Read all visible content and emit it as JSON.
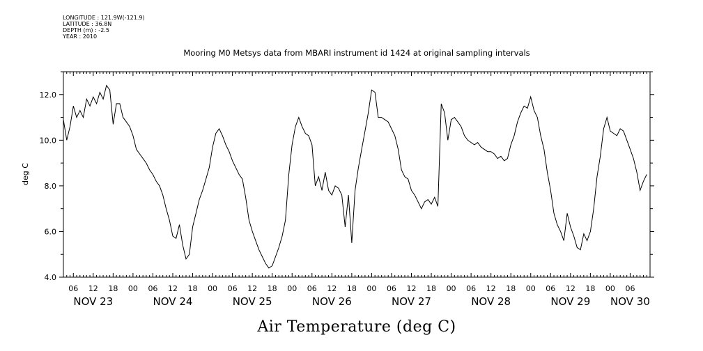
{
  "header": {
    "longitude": "LONGITUDE : 121.9W(-121.9)",
    "latitude": "LATITUDE : 36.8N",
    "depth": "DEPTH (m) : -2.5",
    "year": "YEAR : 2010"
  },
  "chart_data": {
    "type": "line",
    "title": "Mooring M0 Metsys data from MBARI instrument id 1424 at original sampling intervals",
    "xlabel": "Air Temperature (deg C)",
    "ylabel": "deg C",
    "xlim": [
      "2010-11-23T03:00",
      "2010-11-30T12:00"
    ],
    "ylim": [
      4.0,
      13.0
    ],
    "yticks": [
      "4.0",
      "6.0",
      "8.0",
      "10.0",
      "12.0"
    ],
    "hour_ticks": [
      {
        "x": "2010-11-23T06:00",
        "label": "06"
      },
      {
        "x": "2010-11-23T12:00",
        "label": "12"
      },
      {
        "x": "2010-11-23T18:00",
        "label": "18"
      },
      {
        "x": "2010-11-24T00:00",
        "label": "00"
      },
      {
        "x": "2010-11-24T06:00",
        "label": "06"
      },
      {
        "x": "2010-11-24T12:00",
        "label": "12"
      },
      {
        "x": "2010-11-24T18:00",
        "label": "18"
      },
      {
        "x": "2010-11-25T00:00",
        "label": "00"
      },
      {
        "x": "2010-11-25T06:00",
        "label": "06"
      },
      {
        "x": "2010-11-25T12:00",
        "label": "12"
      },
      {
        "x": "2010-11-25T18:00",
        "label": "18"
      },
      {
        "x": "2010-11-26T00:00",
        "label": "00"
      },
      {
        "x": "2010-11-26T06:00",
        "label": "06"
      },
      {
        "x": "2010-11-26T12:00",
        "label": "12"
      },
      {
        "x": "2010-11-26T18:00",
        "label": "18"
      },
      {
        "x": "2010-11-27T00:00",
        "label": "00"
      },
      {
        "x": "2010-11-27T06:00",
        "label": "06"
      },
      {
        "x": "2010-11-27T12:00",
        "label": "12"
      },
      {
        "x": "2010-11-27T18:00",
        "label": "18"
      },
      {
        "x": "2010-11-28T00:00",
        "label": "00"
      },
      {
        "x": "2010-11-28T06:00",
        "label": "06"
      },
      {
        "x": "2010-11-28T12:00",
        "label": "12"
      },
      {
        "x": "2010-11-28T18:00",
        "label": "18"
      },
      {
        "x": "2010-11-29T00:00",
        "label": "00"
      },
      {
        "x": "2010-11-29T06:00",
        "label": "06"
      },
      {
        "x": "2010-11-29T12:00",
        "label": "12"
      },
      {
        "x": "2010-11-29T18:00",
        "label": "18"
      },
      {
        "x": "2010-11-30T00:00",
        "label": "00"
      },
      {
        "x": "2010-11-30T06:00",
        "label": "06"
      }
    ],
    "day_labels": [
      {
        "x": "2010-11-23T12:00",
        "label": "NOV 23"
      },
      {
        "x": "2010-11-24T12:00",
        "label": "NOV 24"
      },
      {
        "x": "2010-11-25T12:00",
        "label": "NOV 25"
      },
      {
        "x": "2010-11-26T12:00",
        "label": "NOV 26"
      },
      {
        "x": "2010-11-27T12:00",
        "label": "NOV 27"
      },
      {
        "x": "2010-11-28T12:00",
        "label": "NOV 28"
      },
      {
        "x": "2010-11-29T12:00",
        "label": "NOV 29"
      },
      {
        "x": "2010-11-30T06:00",
        "label": "NOV 30"
      }
    ],
    "grid": false,
    "series": [
      {
        "color": "#000000",
        "points": [
          [
            "2010-11-23T03:00",
            10.9
          ],
          [
            "2010-11-23T04:00",
            10.0
          ],
          [
            "2010-11-23T05:00",
            10.6
          ],
          [
            "2010-11-23T06:00",
            11.5
          ],
          [
            "2010-11-23T07:00",
            11.0
          ],
          [
            "2010-11-23T08:00",
            11.3
          ],
          [
            "2010-11-23T09:00",
            11.0
          ],
          [
            "2010-11-23T10:00",
            11.8
          ],
          [
            "2010-11-23T11:00",
            11.5
          ],
          [
            "2010-11-23T12:00",
            11.9
          ],
          [
            "2010-11-23T13:00",
            11.6
          ],
          [
            "2010-11-23T14:00",
            12.1
          ],
          [
            "2010-11-23T15:00",
            11.8
          ],
          [
            "2010-11-23T16:00",
            12.4
          ],
          [
            "2010-11-23T17:00",
            12.2
          ],
          [
            "2010-11-23T18:00",
            10.7
          ],
          [
            "2010-11-23T19:00",
            11.6
          ],
          [
            "2010-11-23T20:00",
            11.6
          ],
          [
            "2010-11-23T21:00",
            11.0
          ],
          [
            "2010-11-23T22:00",
            10.8
          ],
          [
            "2010-11-23T23:00",
            10.6
          ],
          [
            "2010-11-24T00:00",
            10.2
          ],
          [
            "2010-11-24T01:00",
            9.6
          ],
          [
            "2010-11-24T02:00",
            9.4
          ],
          [
            "2010-11-24T03:00",
            9.2
          ],
          [
            "2010-11-24T04:00",
            9.0
          ],
          [
            "2010-11-24T05:00",
            8.7
          ],
          [
            "2010-11-24T06:00",
            8.5
          ],
          [
            "2010-11-24T07:00",
            8.2
          ],
          [
            "2010-11-24T08:00",
            8.0
          ],
          [
            "2010-11-24T09:00",
            7.6
          ],
          [
            "2010-11-24T10:00",
            7.0
          ],
          [
            "2010-11-24T11:00",
            6.5
          ],
          [
            "2010-11-24T12:00",
            5.8
          ],
          [
            "2010-11-24T13:00",
            5.7
          ],
          [
            "2010-11-24T14:00",
            6.3
          ],
          [
            "2010-11-24T15:00",
            5.4
          ],
          [
            "2010-11-24T16:00",
            4.8
          ],
          [
            "2010-11-24T17:00",
            5.0
          ],
          [
            "2010-11-24T18:00",
            6.2
          ],
          [
            "2010-11-24T19:00",
            6.8
          ],
          [
            "2010-11-24T20:00",
            7.4
          ],
          [
            "2010-11-24T21:00",
            7.8
          ],
          [
            "2010-11-24T22:00",
            8.3
          ],
          [
            "2010-11-24T23:00",
            8.8
          ],
          [
            "2010-11-25T00:00",
            9.7
          ],
          [
            "2010-11-25T01:00",
            10.3
          ],
          [
            "2010-11-25T02:00",
            10.5
          ],
          [
            "2010-11-25T03:00",
            10.2
          ],
          [
            "2010-11-25T04:00",
            9.8
          ],
          [
            "2010-11-25T05:00",
            9.5
          ],
          [
            "2010-11-25T06:00",
            9.1
          ],
          [
            "2010-11-25T07:00",
            8.8
          ],
          [
            "2010-11-25T08:00",
            8.5
          ],
          [
            "2010-11-25T09:00",
            8.3
          ],
          [
            "2010-11-25T10:00",
            7.5
          ],
          [
            "2010-11-25T11:00",
            6.5
          ],
          [
            "2010-11-25T12:00",
            6.0
          ],
          [
            "2010-11-25T13:00",
            5.6
          ],
          [
            "2010-11-25T14:00",
            5.2
          ],
          [
            "2010-11-25T15:00",
            4.9
          ],
          [
            "2010-11-25T16:00",
            4.6
          ],
          [
            "2010-11-25T17:00",
            4.4
          ],
          [
            "2010-11-25T18:00",
            4.5
          ],
          [
            "2010-11-25T19:00",
            4.9
          ],
          [
            "2010-11-25T20:00",
            5.3
          ],
          [
            "2010-11-25T21:00",
            5.8
          ],
          [
            "2010-11-25T22:00",
            6.5
          ],
          [
            "2010-11-25T23:00",
            8.5
          ],
          [
            "2010-11-26T00:00",
            9.8
          ],
          [
            "2010-11-26T01:00",
            10.6
          ],
          [
            "2010-11-26T02:00",
            11.0
          ],
          [
            "2010-11-26T03:00",
            10.6
          ],
          [
            "2010-11-26T04:00",
            10.3
          ],
          [
            "2010-11-26T05:00",
            10.2
          ],
          [
            "2010-11-26T06:00",
            9.8
          ],
          [
            "2010-11-26T07:00",
            8.0
          ],
          [
            "2010-11-26T08:00",
            8.4
          ],
          [
            "2010-11-26T09:00",
            7.8
          ],
          [
            "2010-11-26T10:00",
            8.6
          ],
          [
            "2010-11-26T11:00",
            7.8
          ],
          [
            "2010-11-26T12:00",
            7.6
          ],
          [
            "2010-11-26T13:00",
            8.0
          ],
          [
            "2010-11-26T14:00",
            7.9
          ],
          [
            "2010-11-26T15:00",
            7.6
          ],
          [
            "2010-11-26T16:00",
            6.2
          ],
          [
            "2010-11-26T17:00",
            7.6
          ],
          [
            "2010-11-26T18:00",
            5.5
          ],
          [
            "2010-11-26T19:00",
            7.8
          ],
          [
            "2010-11-26T20:00",
            8.8
          ],
          [
            "2010-11-26T21:00",
            9.6
          ],
          [
            "2010-11-26T22:00",
            10.4
          ],
          [
            "2010-11-26T23:00",
            11.2
          ],
          [
            "2010-11-27T00:00",
            12.2
          ],
          [
            "2010-11-27T01:00",
            12.1
          ],
          [
            "2010-11-27T02:00",
            11.0
          ],
          [
            "2010-11-27T03:00",
            11.0
          ],
          [
            "2010-11-27T04:00",
            10.9
          ],
          [
            "2010-11-27T05:00",
            10.8
          ],
          [
            "2010-11-27T06:00",
            10.5
          ],
          [
            "2010-11-27T07:00",
            10.2
          ],
          [
            "2010-11-27T08:00",
            9.6
          ],
          [
            "2010-11-27T09:00",
            8.7
          ],
          [
            "2010-11-27T10:00",
            8.4
          ],
          [
            "2010-11-27T11:00",
            8.3
          ],
          [
            "2010-11-27T12:00",
            7.8
          ],
          [
            "2010-11-27T13:00",
            7.6
          ],
          [
            "2010-11-27T14:00",
            7.3
          ],
          [
            "2010-11-27T15:00",
            7.0
          ],
          [
            "2010-11-27T16:00",
            7.3
          ],
          [
            "2010-11-27T17:00",
            7.4
          ],
          [
            "2010-11-27T18:00",
            7.2
          ],
          [
            "2010-11-27T19:00",
            7.5
          ],
          [
            "2010-11-27T20:00",
            7.1
          ],
          [
            "2010-11-27T21:00",
            11.6
          ],
          [
            "2010-11-27T22:00",
            11.2
          ],
          [
            "2010-11-27T23:00",
            10.0
          ],
          [
            "2010-11-28T00:00",
            10.9
          ],
          [
            "2010-11-28T01:00",
            11.0
          ],
          [
            "2010-11-28T02:00",
            10.8
          ],
          [
            "2010-11-28T03:00",
            10.6
          ],
          [
            "2010-11-28T04:00",
            10.2
          ],
          [
            "2010-11-28T05:00",
            10.0
          ],
          [
            "2010-11-28T06:00",
            9.9
          ],
          [
            "2010-11-28T07:00",
            9.8
          ],
          [
            "2010-11-28T08:00",
            9.9
          ],
          [
            "2010-11-28T09:00",
            9.7
          ],
          [
            "2010-11-28T10:00",
            9.6
          ],
          [
            "2010-11-28T11:00",
            9.5
          ],
          [
            "2010-11-28T12:00",
            9.5
          ],
          [
            "2010-11-28T13:00",
            9.4
          ],
          [
            "2010-11-28T14:00",
            9.2
          ],
          [
            "2010-11-28T15:00",
            9.3
          ],
          [
            "2010-11-28T16:00",
            9.1
          ],
          [
            "2010-11-28T17:00",
            9.2
          ],
          [
            "2010-11-28T18:00",
            9.8
          ],
          [
            "2010-11-28T19:00",
            10.2
          ],
          [
            "2010-11-28T20:00",
            10.8
          ],
          [
            "2010-11-28T21:00",
            11.2
          ],
          [
            "2010-11-28T22:00",
            11.5
          ],
          [
            "2010-11-28T23:00",
            11.4
          ],
          [
            "2010-11-29T00:00",
            11.9
          ],
          [
            "2010-11-29T01:00",
            11.3
          ],
          [
            "2010-11-29T02:00",
            11.0
          ],
          [
            "2010-11-29T03:00",
            10.2
          ],
          [
            "2010-11-29T04:00",
            9.6
          ],
          [
            "2010-11-29T05:00",
            8.6
          ],
          [
            "2010-11-29T06:00",
            7.8
          ],
          [
            "2010-11-29T07:00",
            6.8
          ],
          [
            "2010-11-29T08:00",
            6.3
          ],
          [
            "2010-11-29T09:00",
            6.0
          ],
          [
            "2010-11-29T10:00",
            5.6
          ],
          [
            "2010-11-29T11:00",
            6.8
          ],
          [
            "2010-11-29T12:00",
            6.2
          ],
          [
            "2010-11-29T13:00",
            5.8
          ],
          [
            "2010-11-29T14:00",
            5.3
          ],
          [
            "2010-11-29T15:00",
            5.2
          ],
          [
            "2010-11-29T16:00",
            5.9
          ],
          [
            "2010-11-29T17:00",
            5.6
          ],
          [
            "2010-11-29T18:00",
            6.0
          ],
          [
            "2010-11-29T19:00",
            7.0
          ],
          [
            "2010-11-29T20:00",
            8.4
          ],
          [
            "2010-11-29T21:00",
            9.3
          ],
          [
            "2010-11-29T22:00",
            10.5
          ],
          [
            "2010-11-29T23:00",
            11.0
          ],
          [
            "2010-11-30T00:00",
            10.4
          ],
          [
            "2010-11-30T01:00",
            10.3
          ],
          [
            "2010-11-30T02:00",
            10.2
          ],
          [
            "2010-11-30T03:00",
            10.5
          ],
          [
            "2010-11-30T04:00",
            10.4
          ],
          [
            "2010-11-30T05:00",
            10.0
          ],
          [
            "2010-11-30T06:00",
            9.6
          ],
          [
            "2010-11-30T07:00",
            9.2
          ],
          [
            "2010-11-30T08:00",
            8.6
          ],
          [
            "2010-11-30T09:00",
            7.8
          ],
          [
            "2010-11-30T10:00",
            8.2
          ],
          [
            "2010-11-30T11:00",
            8.5
          ]
        ]
      }
    ]
  }
}
